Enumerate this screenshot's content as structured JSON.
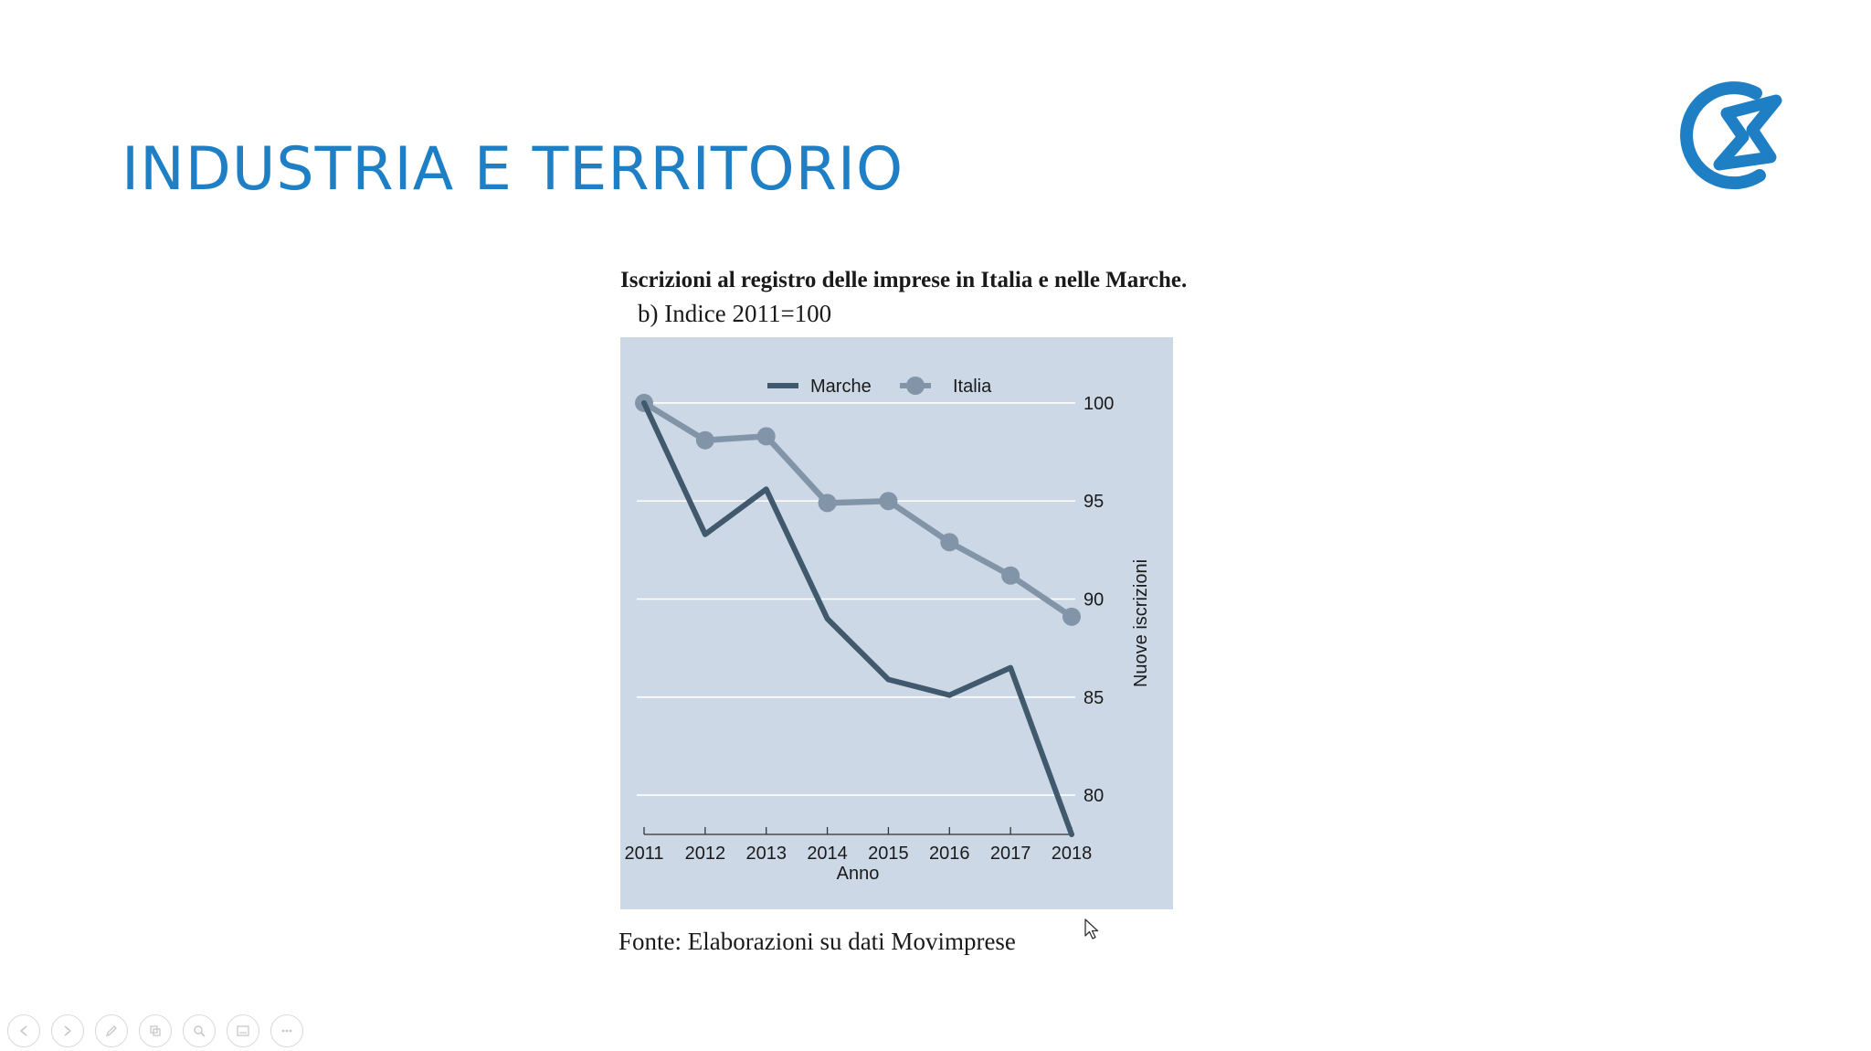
{
  "slide": {
    "title": "INDUSTRIA E TERRITORIO",
    "logo_icon": "brand-logo-icon",
    "accent_color": "#1f7fc4"
  },
  "chart": {
    "heading": "Iscrizioni al registro delle imprese in Italia e nelle Marche.",
    "subheading": "b)  Indice 2011=100",
    "source": "Fonte: Elaborazioni su dati Movimprese"
  },
  "chart_data": {
    "type": "line",
    "title": "Iscrizioni al registro delle imprese in Italia e nelle Marche.",
    "subtitle": "b)  Indice 2011=100",
    "xlabel": "Anno",
    "ylabel": "Nuove iscrizioni",
    "x": [
      "2011",
      "2012",
      "2013",
      "2014",
      "2015",
      "2016",
      "2017",
      "2018"
    ],
    "yticks": [
      "80",
      "85",
      "90",
      "95",
      "100"
    ],
    "ylim": [
      78,
      102
    ],
    "y_axis_side": "right",
    "grid": true,
    "legend_position": "top",
    "background_color": "#cdd8e6",
    "series": [
      {
        "name": "Marche",
        "color": "#41596d",
        "marker": "none",
        "values": [
          100,
          93.3,
          95.6,
          89.0,
          85.9,
          85.1,
          86.5,
          78.0
        ]
      },
      {
        "name": "Italia",
        "color": "#8295a8",
        "marker": "circle",
        "values": [
          100,
          98.1,
          98.3,
          94.9,
          95.0,
          92.9,
          91.2,
          89.1
        ]
      }
    ]
  },
  "toolbar": {
    "buttons": [
      {
        "name": "previous-slide-button",
        "icon": "arrow-left-icon"
      },
      {
        "name": "next-slide-button",
        "icon": "arrow-right-icon"
      },
      {
        "name": "pen-tool-button",
        "icon": "pen-icon"
      },
      {
        "name": "slides-overview-button",
        "icon": "slides-icon"
      },
      {
        "name": "zoom-button",
        "icon": "magnifier-icon"
      },
      {
        "name": "subtitles-button",
        "icon": "screen-icon"
      },
      {
        "name": "more-options-button",
        "icon": "more-icon"
      }
    ]
  }
}
